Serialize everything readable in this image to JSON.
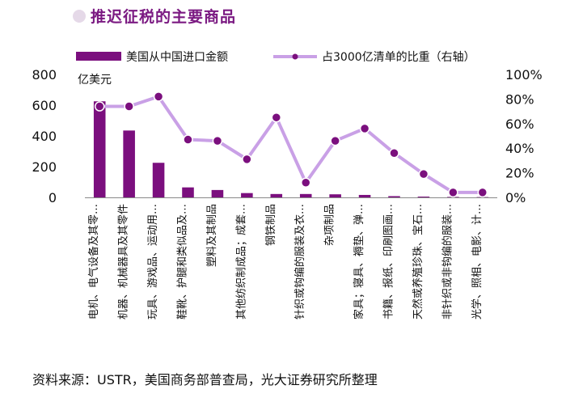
{
  "title": "推迟征税的主要商品",
  "source": "资料来源：USTR，美国商务部普查局，光大证券研究所整理",
  "chart_data": {
    "type": "bar+line",
    "categories": [
      "电机、电气设备及其零…",
      "机器、机械器具及其零件",
      "玩具、游戏品、运动用…",
      "鞋靴、护腿和类似品及…",
      "塑料及其制品",
      "其他纺织制成品；成套…",
      "钢铁制品",
      "针织或钩编的服装及衣…",
      "杂项制品",
      "家具；寝具、褥垫、弹…",
      "书籍、报纸、印刷图画…",
      "天然或养殖珍珠、宝石…",
      "非针织或非钩编的服装…",
      "光学、照相、电影、计…"
    ],
    "series": [
      {
        "name": "美国从中国进口金额",
        "type": "bar",
        "axis": "left",
        "color": "#7b0f7e",
        "values": [
          625,
          435,
          225,
          65,
          48,
          28,
          22,
          22,
          20,
          16,
          8,
          5,
          3,
          2
        ]
      },
      {
        "name": "占3000亿清单的比重（右轴）",
        "type": "line",
        "axis": "right",
        "color": "#c9a0e6",
        "marker_color": "#7b0f7e",
        "values": [
          0.74,
          0.74,
          0.82,
          0.47,
          0.46,
          0.31,
          0.65,
          0.12,
          0.46,
          0.56,
          0.36,
          0.19,
          0.04,
          0.04
        ]
      }
    ],
    "left_axis": {
      "unit": "亿美元",
      "ticks": [
        0,
        200,
        400,
        600,
        800
      ],
      "ylim": [
        0,
        800
      ]
    },
    "right_axis": {
      "ticks": [
        "0%",
        "20%",
        "40%",
        "60%",
        "80%",
        "100%"
      ],
      "ylim": [
        0,
        1
      ]
    },
    "legend_position": "top"
  }
}
